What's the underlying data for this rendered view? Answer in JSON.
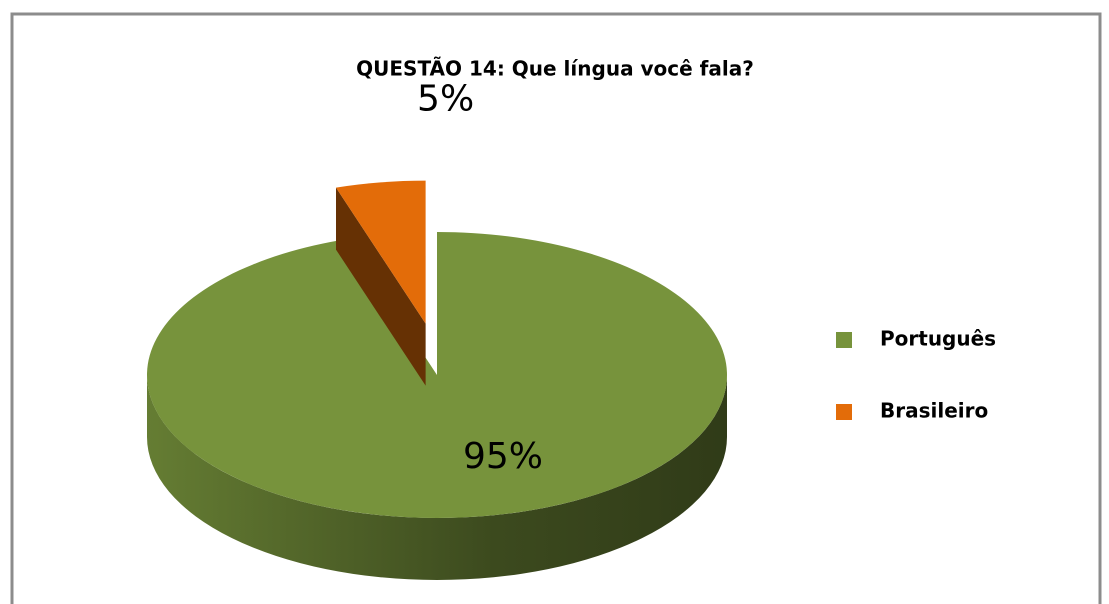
{
  "chart_data": {
    "type": "pie",
    "title": "QUESTÃO 14: Que língua você fala?",
    "categories": [
      "Português",
      "Brasileiro"
    ],
    "values": [
      95,
      5
    ],
    "value_labels": [
      "95%",
      "5%"
    ],
    "colors": [
      "#77933c",
      "#e36c09"
    ],
    "legend": "right"
  }
}
